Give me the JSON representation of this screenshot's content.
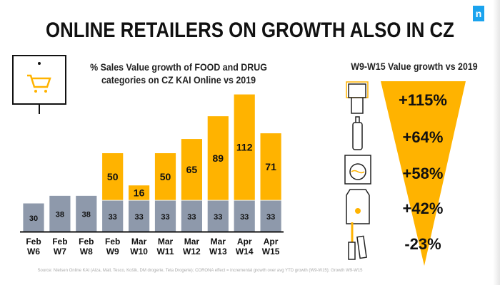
{
  "title": "ONLINE RETAILERS ON GROWTH ALSO IN CZ",
  "logo": "n",
  "source": "Source: Nielsen Online KAI (Alza, Mall, Tesco, Košík, DM drogerie, Teta Drogerie); CORONA effect = incremental growth over avg YTD growth (W9-W15); Growth W9-W15",
  "colors": {
    "base": "#8e99ab",
    "corona": "#ffb300",
    "logo": "#1aa3ee"
  },
  "chart_data": {
    "type": "bar",
    "stacked": true,
    "title": "% Sales Value growth of FOOD and DRUG categories on CZ KAI Online vs 2019",
    "categories": [
      [
        "Feb",
        "W6"
      ],
      [
        "Feb",
        "W7"
      ],
      [
        "Feb",
        "W8"
      ],
      [
        "Feb",
        "W9"
      ],
      [
        "Mar",
        "W10"
      ],
      [
        "Mar",
        "W11"
      ],
      [
        "Mar",
        "W12"
      ],
      [
        "Mar",
        "W13"
      ],
      [
        "Apr",
        "W14"
      ],
      [
        "Apr",
        "W15"
      ]
    ],
    "series": [
      {
        "values": [
          30,
          38,
          38,
          33,
          33,
          33,
          33,
          33,
          33,
          33
        ],
        "color": "#8e99ab"
      },
      {
        "values": [
          null,
          null,
          null,
          50,
          16,
          50,
          65,
          89,
          112,
          71
        ],
        "color": "#ffb300"
      }
    ],
    "ylim": [
      0,
      150
    ],
    "grid": false
  },
  "right": {
    "title": "W9-W15 Value growth vs 2019",
    "items": [
      {
        "icon": "toilet-paper-icon",
        "value": "+115%"
      },
      {
        "icon": "baby-bottle-icon",
        "value": "+64%"
      },
      {
        "icon": "washing-machine-icon",
        "value": "+58%"
      },
      {
        "icon": "pet-food-icon",
        "value": "+42%"
      },
      {
        "icon": "cosmetics-icon",
        "value": "-23%"
      }
    ]
  }
}
